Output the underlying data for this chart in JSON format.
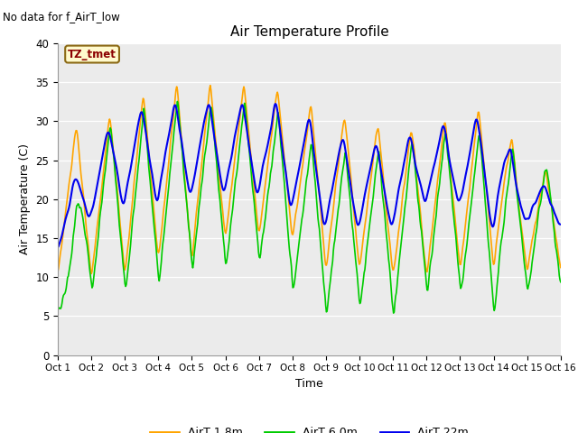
{
  "title": "Air Temperature Profile",
  "xlabel": "Time",
  "ylabel": "Air Temperature (C)",
  "top_label": "No data for f_AirT_low",
  "annotation": "TZ_tmet",
  "ylim": [
    0,
    40
  ],
  "xlim": [
    0,
    15
  ],
  "xtick_labels": [
    "Oct 1",
    "Oct 2",
    "Oct 3",
    "Oct 4",
    "Oct 5",
    "Oct 6",
    "Oct 7",
    "Oct 8",
    "Oct 9",
    "Oct 10",
    "Oct 11",
    "Oct 12",
    "Oct 13",
    "Oct 14",
    "Oct 15",
    "Oct 16"
  ],
  "ytick_labels": [
    "0",
    "5",
    "10",
    "15",
    "20",
    "25",
    "30",
    "35",
    "40"
  ],
  "color_orange": "#FFA500",
  "color_green": "#00CC00",
  "color_blue": "#0000EE",
  "bg_color": "#EBEBEB",
  "legend_labels": [
    "AirT 1.8m",
    "AirT 6.0m",
    "AirT 22m"
  ]
}
